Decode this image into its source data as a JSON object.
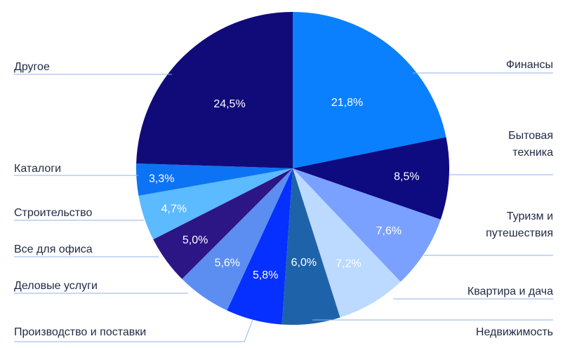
{
  "chart_data": {
    "type": "pie",
    "title": "",
    "start_angle_deg": 0,
    "direction": "clockwise",
    "slices": [
      {
        "label": [
          "Финансы"
        ],
        "value": 21.8,
        "value_label": "21,8%",
        "color": "#0a80ff",
        "text_color": "#ffffff"
      },
      {
        "label": [
          "Бытовая",
          "техника"
        ],
        "value": 8.5,
        "value_label": "8,5%",
        "color": "#0e0a80",
        "text_color": "#ffffff"
      },
      {
        "label": [
          "Туризм и",
          "путешествия"
        ],
        "value": 7.6,
        "value_label": "7,6%",
        "color": "#7aa1ff",
        "text_color": "#ffffff"
      },
      {
        "label": [
          "Квартира и дача"
        ],
        "value": 7.2,
        "value_label": "7,2%",
        "color": "#bcd9ff",
        "text_color": "#ffffff"
      },
      {
        "label": [
          "Недвижимость"
        ],
        "value": 6.0,
        "value_label": "6,0%",
        "color": "#1e63aa",
        "text_color": "#ffffff"
      },
      {
        "label": [
          "Производство и поставки"
        ],
        "value": 5.8,
        "value_label": "5,8%",
        "color": "#0530ff",
        "text_color": "#ffffff"
      },
      {
        "label": [
          "Деловые услуги"
        ],
        "value": 5.6,
        "value_label": "5,6%",
        "color": "#5b8ef0",
        "text_color": "#ffffff"
      },
      {
        "label": [
          "Все для офиса"
        ],
        "value": 5.0,
        "value_label": "5,0%",
        "color": "#2c1585",
        "text_color": "#ffffff"
      },
      {
        "label": [
          "Строительство"
        ],
        "value": 4.7,
        "value_label": "4,7%",
        "color": "#5cbaff",
        "text_color": "#ffffff"
      },
      {
        "label": [
          "Каталоги"
        ],
        "value": 3.3,
        "value_label": "3,3%",
        "color": "#0c73f5",
        "text_color": "#ffffff"
      },
      {
        "label": [
          "Другое"
        ],
        "value": 24.5,
        "value_label": "24,5%",
        "color": "#110b7a",
        "text_color": "#ffffff"
      }
    ]
  }
}
